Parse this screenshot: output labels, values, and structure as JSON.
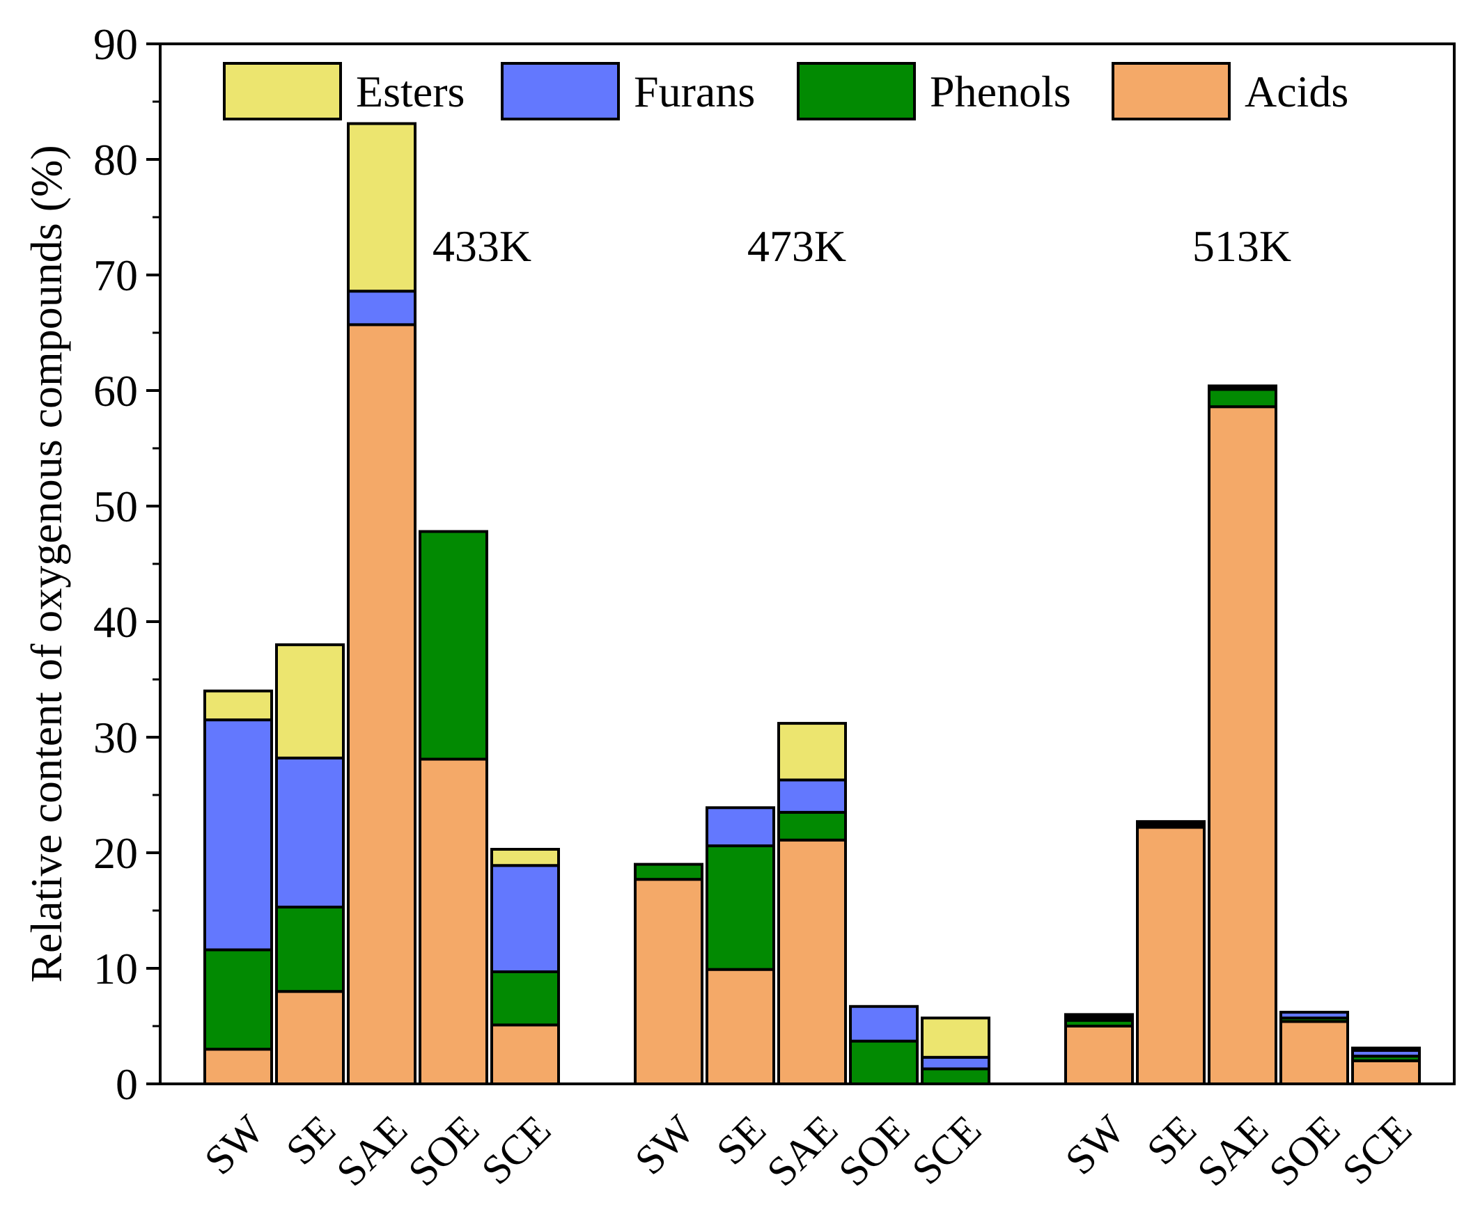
{
  "chart_data": {
    "type": "bar",
    "stacked": true,
    "title": "",
    "xlabel": "",
    "ylabel": "Relative content of oxygenous compounds (%)",
    "ylim": [
      0,
      90
    ],
    "y_major_ticks": [
      0,
      10,
      20,
      30,
      40,
      50,
      60,
      70,
      80,
      90
    ],
    "y_minor_step": 5,
    "legend_position": "top",
    "groups": [
      "433K",
      "473K",
      "513K"
    ],
    "categories": [
      "SW",
      "SE",
      "SAE",
      "SOE",
      "SCE"
    ],
    "series": [
      {
        "name": "Acids",
        "color": "#f4a968",
        "values": [
          [
            3.0,
            8.0,
            65.7,
            28.1,
            5.1
          ],
          [
            17.7,
            9.9,
            21.1,
            0.0,
            0.0
          ],
          [
            5.0,
            22.2,
            58.6,
            5.4,
            2.0
          ]
        ]
      },
      {
        "name": "Phenols",
        "color": "#028a02",
        "values": [
          [
            8.6,
            7.3,
            0.0,
            19.7,
            4.6
          ],
          [
            1.3,
            10.7,
            2.4,
            3.7,
            1.3
          ],
          [
            0.5,
            0.1,
            1.5,
            0.3,
            0.4
          ]
        ]
      },
      {
        "name": "Furans",
        "color": "#6378fe",
        "values": [
          [
            19.9,
            12.9,
            2.9,
            0.0,
            9.2
          ],
          [
            0.0,
            3.3,
            2.8,
            3.0,
            1.0
          ],
          [
            0.0,
            0.0,
            0.0,
            0.5,
            0.5
          ]
        ]
      },
      {
        "name": "Esters",
        "color": "#ece56f",
        "values": [
          [
            2.5,
            9.8,
            14.5,
            0.0,
            1.4
          ],
          [
            0.0,
            0.0,
            4.9,
            0.0,
            3.4
          ],
          [
            0.0,
            0.0,
            0.0,
            0.0,
            0.0
          ]
        ]
      }
    ],
    "top_caps": [
      [
        0.0,
        0.0,
        0.0,
        0.0,
        0.0
      ],
      [
        0.0,
        0.0,
        0.0,
        0.0,
        0.0
      ],
      [
        0.5,
        0.4,
        0.3,
        0.0,
        0.2
      ]
    ],
    "legend_order": [
      "Esters",
      "Furans",
      "Phenols",
      "Acids"
    ]
  }
}
